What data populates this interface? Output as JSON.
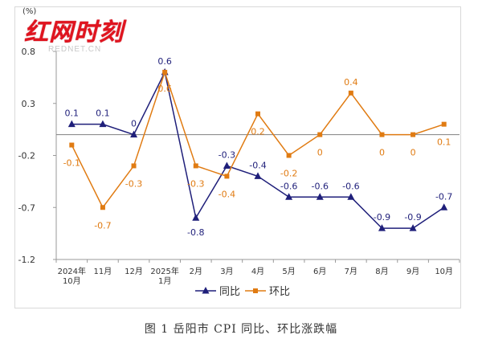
{
  "logo": {
    "text": "红网时刻",
    "subtext": "REDNET.CN"
  },
  "caption": "图 1 岳阳市 CPI 同比、环比涨跌幅",
  "colors": {
    "yoy": "#1f1f7a",
    "mom": "#e07b12",
    "axis": "#999999",
    "zero_line": "#808080",
    "tick_text": "#333333"
  },
  "chart_data": {
    "type": "line",
    "title": "岳阳市 CPI 同比、环比涨跌幅",
    "ylabel": "(%)",
    "xlabel": "",
    "ylim": [
      -1.2,
      0.8
    ],
    "yticks": [
      0.8,
      0.3,
      -0.2,
      -0.7,
      -1.2
    ],
    "yticks_labels": [
      "0.8",
      "0.3",
      "-0.2",
      "-0.7",
      "-1.2"
    ],
    "categories": [
      [
        "2024年",
        "10月"
      ],
      [
        "11月"
      ],
      [
        "12月"
      ],
      [
        "2025年",
        "1月"
      ],
      [
        "2月"
      ],
      [
        "3月"
      ],
      [
        "4月"
      ],
      [
        "5月"
      ],
      [
        "6月"
      ],
      [
        "7月"
      ],
      [
        "8月"
      ],
      [
        "9月"
      ],
      [
        "10月"
      ]
    ],
    "grid": false,
    "legend_position": "bottom",
    "series": [
      {
        "name": "同比",
        "marker": "triangle",
        "values": [
          0.1,
          0.1,
          0,
          0.6,
          -0.8,
          -0.3,
          -0.4,
          -0.6,
          -0.6,
          -0.6,
          -0.9,
          -0.9,
          -0.7
        ],
        "labels": [
          "0.1",
          "0.1",
          "0",
          "0.6",
          "-0.8",
          "-0.3",
          "-0.4",
          "-0.6",
          "-0.6",
          "-0.6",
          "-0.9",
          "-0.9",
          "-0.7"
        ]
      },
      {
        "name": "环比",
        "marker": "square",
        "values": [
          -0.1,
          -0.7,
          -0.3,
          0.6,
          -0.3,
          -0.4,
          0.2,
          -0.2,
          0,
          0.4,
          0,
          0,
          0.1
        ],
        "labels": [
          "-0.1",
          "-0.7",
          "-0.3",
          "0.6",
          "-0.3",
          "-0.4",
          "0.2",
          "-0.2",
          "0",
          "0.4",
          "0",
          "0",
          "0.1"
        ]
      }
    ]
  }
}
